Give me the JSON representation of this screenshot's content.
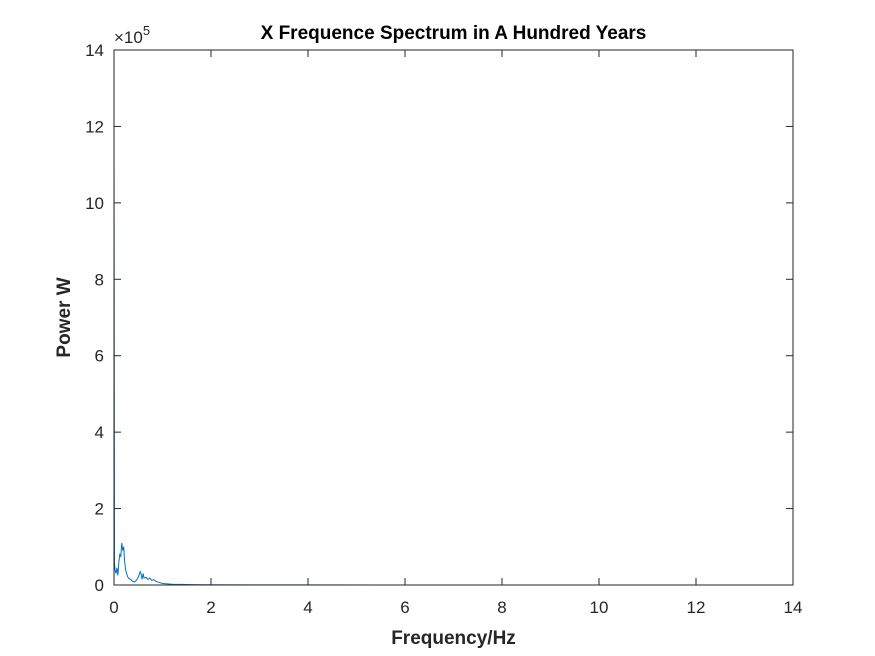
{
  "chart_data": {
    "type": "line",
    "title": "X Frequence Spectrum in A Hundred Years",
    "xlabel": "Frequency/Hz",
    "ylabel": "Power W",
    "xlim": [
      0,
      14
    ],
    "ylim": [
      0,
      1400000
    ],
    "x_ticks": [
      0,
      2,
      4,
      6,
      8,
      10,
      12,
      14
    ],
    "y_ticks": [
      0,
      2,
      4,
      6,
      8,
      10,
      12,
      14
    ],
    "y_tick_labels": [
      "0",
      "2",
      "4",
      "6",
      "8",
      "10",
      "12",
      "14"
    ],
    "x_tick_labels": [
      "0",
      "2",
      "4",
      "6",
      "8",
      "10",
      "12",
      "14"
    ],
    "y_exponent_label": {
      "base": "×10",
      "power": "5"
    },
    "grid": false,
    "box": true,
    "line_color": "#0072BD",
    "series": [
      {
        "x": [
          0,
          0.01,
          0.02,
          0.04,
          0.06,
          0.08,
          0.1,
          0.12,
          0.14,
          0.16,
          0.18,
          0.2,
          0.22,
          0.24,
          0.26,
          0.28,
          0.3,
          0.34,
          0.38,
          0.42,
          0.46,
          0.5,
          0.54,
          0.56,
          0.58,
          0.6,
          0.62,
          0.66,
          0.7,
          0.74,
          0.78,
          0.82,
          0.86,
          0.9,
          0.95,
          1.0,
          1.1,
          1.2,
          1.4,
          1.6,
          2.0,
          3.0,
          4.0,
          6.0,
          8.0,
          10.0,
          12.0,
          12.5
        ],
        "y": [
          1230000,
          60000,
          40000,
          30000,
          45000,
          25000,
          60000,
          80000,
          75000,
          110000,
          90000,
          100000,
          60000,
          40000,
          30000,
          22000,
          18000,
          15000,
          10000,
          8000,
          12000,
          20000,
          35000,
          28000,
          15000,
          30000,
          18000,
          20000,
          15000,
          18000,
          12000,
          14000,
          10000,
          8000,
          6000,
          4000,
          3000,
          2000,
          1500,
          1000,
          500,
          300,
          200,
          100,
          50,
          30,
          20,
          0
        ]
      }
    ]
  }
}
